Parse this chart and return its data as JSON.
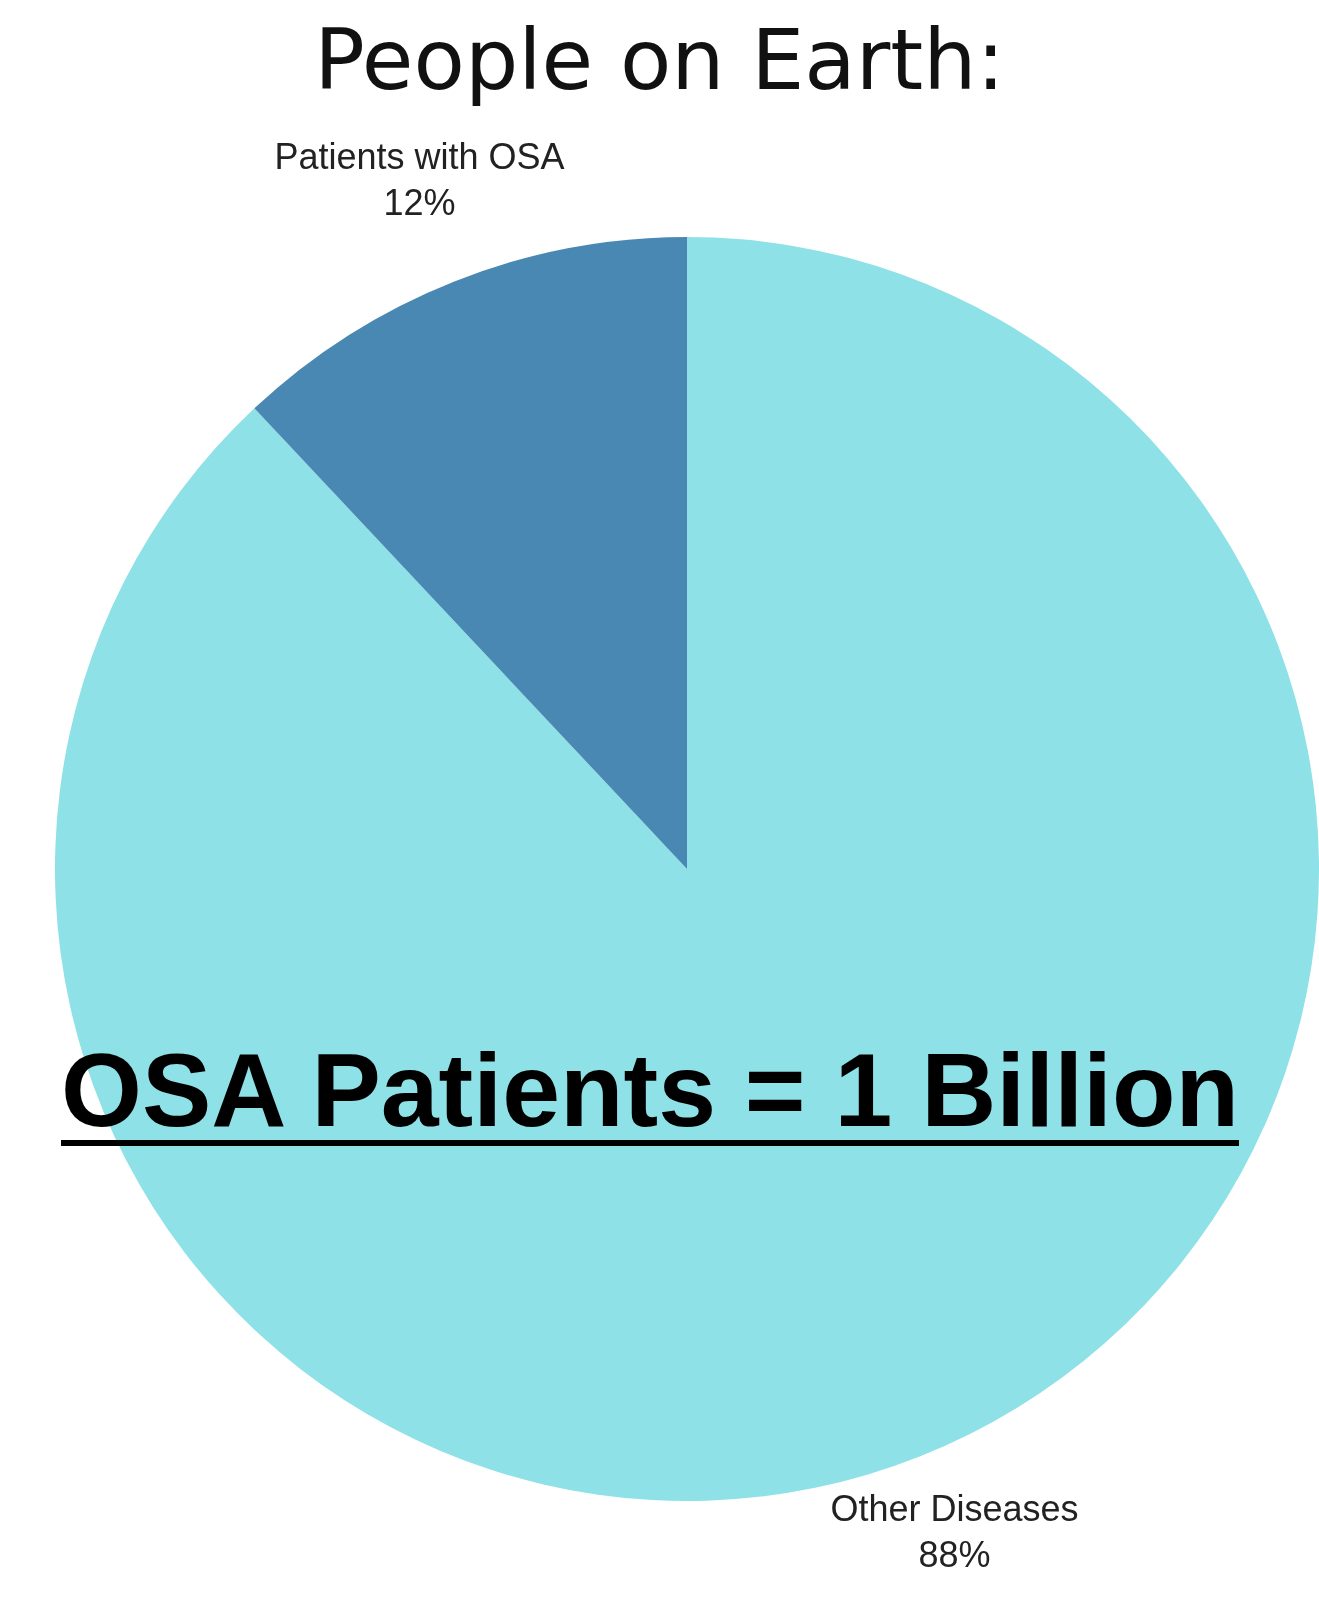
{
  "chart_data": {
    "type": "pie",
    "title": "People on Earth:",
    "categories": [
      "Other Diseases",
      "Patients with OSA"
    ],
    "values": [
      88,
      12
    ],
    "value_labels": [
      "88%",
      "12%"
    ],
    "colors": [
      "#8ee1e6",
      "#4a88b4"
    ],
    "legend": false,
    "annotations": [
      "OSA Patients = 1 Billion"
    ]
  }
}
